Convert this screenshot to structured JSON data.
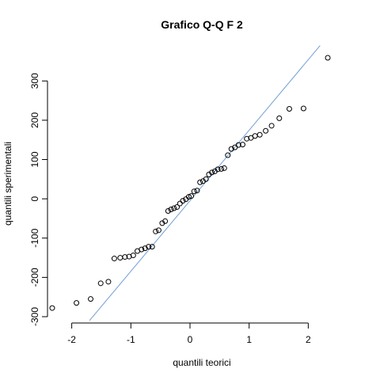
{
  "chart_data": {
    "type": "scatter",
    "title": "Grafico Q-Q F 2",
    "xlabel": "quantili teorici",
    "ylabel": "quantili sperimentali",
    "xlim": [
      -2.41,
      2.41
    ],
    "ylim": [
      -300,
      365
    ],
    "x_ticks": [
      -2,
      -1,
      0,
      1,
      2
    ],
    "y_ticks": [
      -300,
      -200,
      -100,
      0,
      100,
      200,
      300
    ],
    "grid": false,
    "reference_line": {
      "color": "#6f9fd6",
      "points": [
        [
          -1.7,
          -310
        ],
        [
          2.2,
          390
        ]
      ]
    },
    "points": [
      [
        -2.33,
        -278
      ],
      [
        -1.92,
        -265
      ],
      [
        -1.68,
        -255
      ],
      [
        -1.51,
        -215
      ],
      [
        -1.38,
        -211
      ],
      [
        -1.28,
        -152
      ],
      [
        -1.18,
        -150
      ],
      [
        -1.1,
        -148
      ],
      [
        -1.03,
        -147
      ],
      [
        -0.96,
        -144
      ],
      [
        -0.89,
        -133
      ],
      [
        -0.82,
        -129
      ],
      [
        -0.76,
        -126
      ],
      [
        -0.7,
        -122
      ],
      [
        -0.64,
        -122
      ],
      [
        -0.58,
        -83
      ],
      [
        -0.53,
        -80
      ],
      [
        -0.47,
        -62
      ],
      [
        -0.42,
        -57
      ],
      [
        -0.37,
        -31
      ],
      [
        -0.32,
        -27
      ],
      [
        -0.27,
        -24
      ],
      [
        -0.22,
        -21
      ],
      [
        -0.17,
        -12
      ],
      [
        -0.12,
        -5
      ],
      [
        -0.07,
        -1
      ],
      [
        -0.02,
        5
      ],
      [
        0.02,
        7
      ],
      [
        0.07,
        19
      ],
      [
        0.12,
        21
      ],
      [
        0.17,
        42
      ],
      [
        0.22,
        45
      ],
      [
        0.27,
        50
      ],
      [
        0.32,
        62
      ],
      [
        0.37,
        67
      ],
      [
        0.42,
        70
      ],
      [
        0.47,
        75
      ],
      [
        0.53,
        76
      ],
      [
        0.58,
        78
      ],
      [
        0.64,
        111
      ],
      [
        0.7,
        127
      ],
      [
        0.76,
        131
      ],
      [
        0.82,
        137
      ],
      [
        0.89,
        138
      ],
      [
        0.96,
        153
      ],
      [
        1.03,
        155
      ],
      [
        1.1,
        160
      ],
      [
        1.18,
        163
      ],
      [
        1.28,
        173
      ],
      [
        1.38,
        186
      ],
      [
        1.51,
        205
      ],
      [
        1.68,
        229
      ],
      [
        1.92,
        230
      ],
      [
        2.33,
        359
      ]
    ]
  }
}
